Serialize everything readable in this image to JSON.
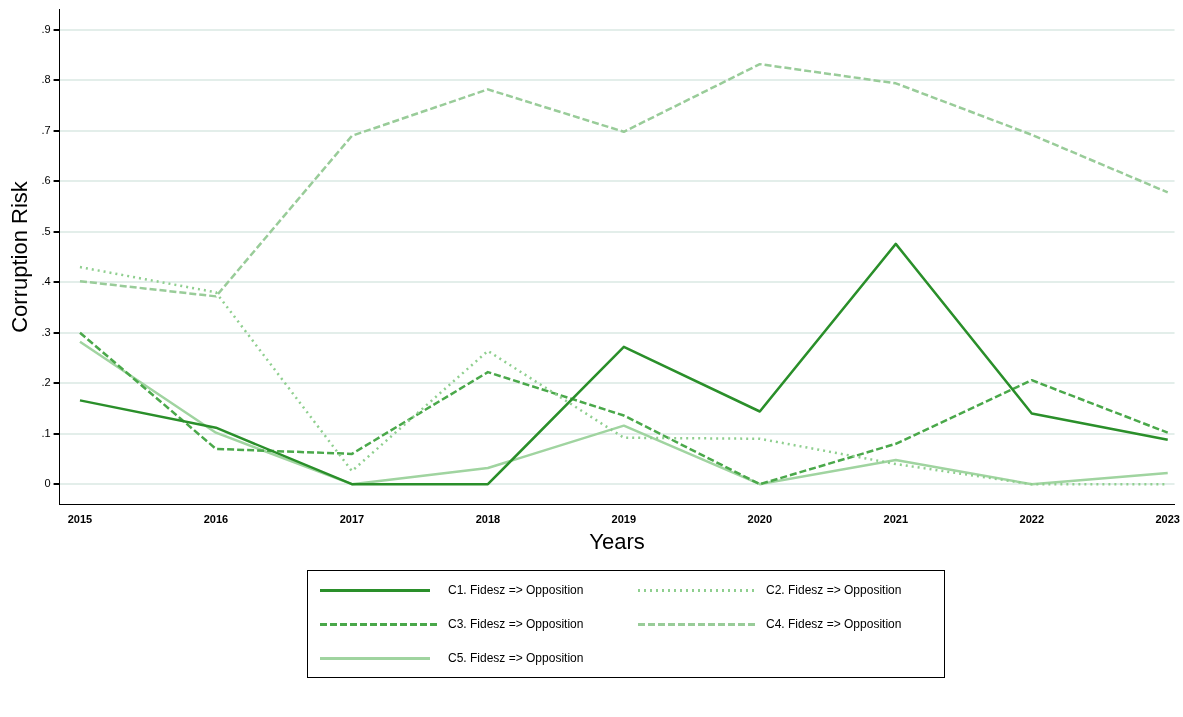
{
  "chart_data": {
    "type": "line",
    "xlabel": "Years",
    "ylabel": "Corruption Risk",
    "x": [
      2015,
      2016,
      2017,
      2018,
      2019,
      2020,
      2021,
      2022,
      2023
    ],
    "series": [
      {
        "name": "C1. Fidesz => Opposition",
        "color": "#2a8f2a",
        "line_style": "solid",
        "values": [
          0.166,
          0.112,
          0,
          0,
          0.272,
          0.144,
          0.476,
          0.14,
          0.088
        ]
      },
      {
        "name": "C2. Fidesz => Opposition",
        "color": "#8fcf8f",
        "line_style": "dotted",
        "values": [
          0.43,
          0.38,
          0.026,
          0.264,
          0.092,
          0.09,
          0.04,
          0,
          0
        ]
      },
      {
        "name": "C3. Fidesz => Opposition",
        "color": "#4aa84a",
        "line_style": "dashed",
        "values": [
          0.3,
          0.07,
          0.06,
          0.222,
          0.136,
          0,
          0.08,
          0.206,
          0.102
        ]
      },
      {
        "name": "C4. Fidesz => Opposition",
        "color": "#99cc99",
        "line_style": "dashed",
        "values": [
          0.402,
          0.372,
          0.69,
          0.782,
          0.698,
          0.832,
          0.794,
          0.692,
          0.578
        ]
      },
      {
        "name": "C5. Fidesz => Opposition",
        "color": "#a0d4a0",
        "line_style": "solid",
        "values": [
          0.282,
          0.102,
          0,
          0.032,
          0.116,
          0,
          0.048,
          0,
          0.022
        ]
      }
    ],
    "xlim": [
      2014.85,
      2023.05
    ],
    "xticks": [
      2015,
      2016,
      2017,
      2018,
      2019,
      2020,
      2021,
      2022,
      2023
    ],
    "ylim": [
      -0.04,
      0.94
    ],
    "yticks": [
      {
        "value": 0,
        "label": "0"
      },
      {
        "value": 0.1,
        "label": ".1"
      },
      {
        "value": 0.2,
        "label": ".2"
      },
      {
        "value": 0.3,
        "label": ".3"
      },
      {
        "value": 0.4,
        "label": ".4"
      },
      {
        "value": 0.5,
        "label": ".5"
      },
      {
        "value": 0.6,
        "label": ".6"
      },
      {
        "value": 0.7,
        "label": ".7"
      },
      {
        "value": 0.8,
        "label": ".8"
      },
      {
        "value": 0.9,
        "label": ".9"
      }
    ],
    "grid": "y",
    "legend": "bottom",
    "marker": "none"
  }
}
